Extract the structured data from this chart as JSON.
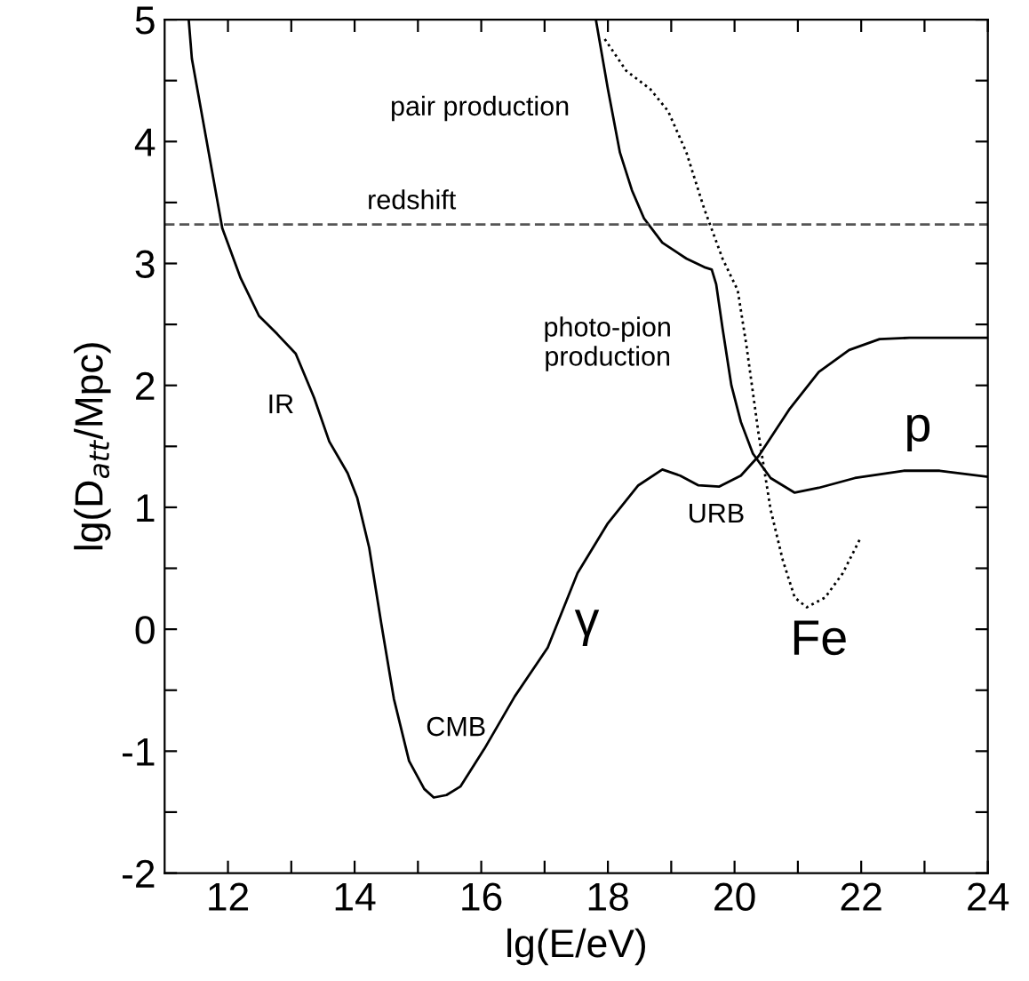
{
  "chart_data": {
    "type": "line",
    "xlabel": "lg(E/eV)",
    "ylabel": "lg(D$_{att}$/Mpc)",
    "xlim": [
      11,
      24
    ],
    "ylim": [
      -2,
      5
    ],
    "xticks": [
      12,
      {
        "value": 13,
        "label": null
      },
      14,
      {
        "value": 15,
        "label": null
      },
      16,
      {
        "value": 17,
        "label": null
      },
      18,
      {
        "value": 19,
        "label": null
      },
      20,
      {
        "value": 21,
        "label": null
      },
      22,
      {
        "value": 23,
        "label": null
      },
      24
    ],
    "yticks": [
      -2,
      {
        "value": -1.5,
        "label": null
      },
      -1,
      {
        "value": -0.5,
        "label": null
      },
      0,
      {
        "value": 0.5,
        "label": null
      },
      1,
      {
        "value": 1.5,
        "label": null
      },
      2,
      {
        "value": 2.5,
        "label": null
      },
      3,
      {
        "value": 3.5,
        "label": null
      },
      4,
      {
        "value": 4.5,
        "label": null
      },
      5
    ],
    "grid": false,
    "legend": false,
    "series": [
      {
        "color": "#000000",
        "line_style": "solid",
        "x": [
          11.38,
          11.43,
          11.91,
          12.2,
          12.49,
          12.78,
          13.07,
          13.36,
          13.6,
          13.89,
          14.04,
          14.23,
          14.42,
          14.62,
          14.86,
          15.1,
          15.25,
          15.45,
          15.67,
          16.05,
          16.53,
          17.05,
          17.52,
          18.0,
          18.48,
          18.86,
          19.14,
          19.43,
          19.76,
          20.1,
          20.38,
          20.86,
          21.33,
          21.81,
          22.29,
          22.76,
          24
        ],
        "values": [
          5,
          4.68,
          3.29,
          2.88,
          2.57,
          2.42,
          2.26,
          1.9,
          1.54,
          1.28,
          1.08,
          0.67,
          0.05,
          -0.57,
          -1.08,
          -1.31,
          -1.38,
          -1.36,
          -1.29,
          -0.98,
          -0.55,
          -0.15,
          0.46,
          0.87,
          1.18,
          1.31,
          1.26,
          1.18,
          1.17,
          1.26,
          1.42,
          1.8,
          2.11,
          2.29,
          2.38,
          2.39,
          2.39
        ]
      },
      {
        "color": "#000000",
        "line_style": "solid",
        "x": [
          17.81,
          18.0,
          18.19,
          18.38,
          18.57,
          18.86,
          19.24,
          19.52,
          19.64,
          19.71,
          19.81,
          19.95,
          20.1,
          20.29,
          20.57,
          20.95,
          21.33,
          21.9,
          22.67,
          23.24,
          24
        ],
        "values": [
          5,
          4.43,
          3.91,
          3.6,
          3.37,
          3.17,
          3.04,
          2.97,
          2.95,
          2.83,
          2.47,
          2.0,
          1.7,
          1.44,
          1.24,
          1.12,
          1.16,
          1.24,
          1.3,
          1.3,
          1.25
        ]
      },
      {
        "color": "#000000",
        "line_style": "dotted",
        "x": [
          17.95,
          18.29,
          18.67,
          18.95,
          19.24,
          19.52,
          19.81,
          20.05,
          20.19,
          20.38,
          20.57,
          20.76,
          20.95,
          21.14,
          21.43,
          21.71,
          22.0
        ],
        "values": [
          4.84,
          4.58,
          4.43,
          4.25,
          3.91,
          3.45,
          3.04,
          2.78,
          2.32,
          1.6,
          0.98,
          0.57,
          0.26,
          0.18,
          0.26,
          0.46,
          0.76
        ]
      }
    ],
    "ref_lines": [
      {
        "axis": "y",
        "value": 3.32,
        "label": "redshift",
        "color": "#555555",
        "line_style": "dashed"
      }
    ],
    "annotations": [
      "pair production",
      "photo-pion\nproduction",
      "IR",
      "CMB",
      "URB",
      "γ",
      "p",
      "Fe"
    ]
  }
}
